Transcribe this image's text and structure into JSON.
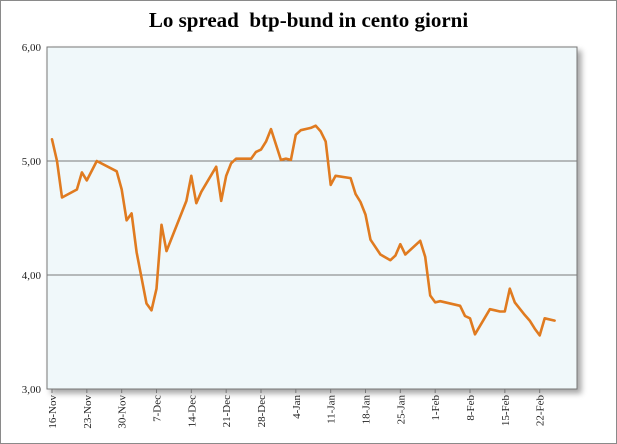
{
  "chart_data": {
    "type": "line",
    "title": "Lo spread  btp-bund in cento giorni",
    "xlabel": "",
    "ylabel": "",
    "ylim": [
      3.0,
      6.0
    ],
    "yticks": [
      "6,00",
      "5,00",
      "4,00",
      "3,00"
    ],
    "ytick_values": [
      6,
      5,
      4,
      3
    ],
    "xticks": [
      "16-Nov",
      "23-Nov",
      "30-Nov",
      "7-Dec",
      "14-Dec",
      "21-Dec",
      "28-Dec",
      "4-Jan",
      "11-Jan",
      "18-Jan",
      "25-Jan",
      "1-Feb",
      "8-Feb",
      "15-Feb",
      "22-Feb"
    ],
    "xtick_days": [
      0,
      7,
      14,
      21,
      28,
      35,
      42,
      49,
      56,
      63,
      70,
      77,
      84,
      91,
      98
    ],
    "grid": true,
    "line_color": "#e07b20",
    "plot_background": "#f0f8fa",
    "series": [
      {
        "x": [
          0,
          1,
          2,
          5,
          6,
          7,
          9,
          13,
          14,
          15,
          16,
          17,
          19,
          20,
          21,
          22,
          23,
          27,
          28,
          29,
          30,
          33,
          34,
          35,
          36,
          37,
          40,
          41,
          42,
          43,
          44,
          46,
          47,
          48,
          49,
          50,
          52,
          53,
          54,
          55,
          56,
          57,
          60,
          61,
          62,
          63,
          64,
          66,
          68,
          69,
          70,
          71,
          74,
          75,
          76,
          77,
          78,
          82,
          83,
          84,
          85,
          88,
          89,
          90,
          91,
          92,
          93,
          95,
          96,
          97,
          98,
          99,
          101
        ],
        "y": [
          5.19,
          5.0,
          4.68,
          4.75,
          4.9,
          4.83,
          5.0,
          4.91,
          4.75,
          4.48,
          4.54,
          4.2,
          3.75,
          3.69,
          3.88,
          4.44,
          4.21,
          4.65,
          4.87,
          4.63,
          4.73,
          4.95,
          4.65,
          4.87,
          4.98,
          5.02,
          5.02,
          5.08,
          5.1,
          5.17,
          5.28,
          5.01,
          5.02,
          5.01,
          5.23,
          5.27,
          5.29,
          5.31,
          5.26,
          5.17,
          4.79,
          4.87,
          4.85,
          4.71,
          4.64,
          4.53,
          4.31,
          4.18,
          4.13,
          4.17,
          4.27,
          4.18,
          4.3,
          4.16,
          3.82,
          3.76,
          3.77,
          3.73,
          3.64,
          3.62,
          3.48,
          3.7,
          3.69,
          3.68,
          3.68,
          3.88,
          3.76,
          3.65,
          3.6,
          3.53,
          3.47,
          3.62,
          3.6
        ]
      }
    ]
  }
}
